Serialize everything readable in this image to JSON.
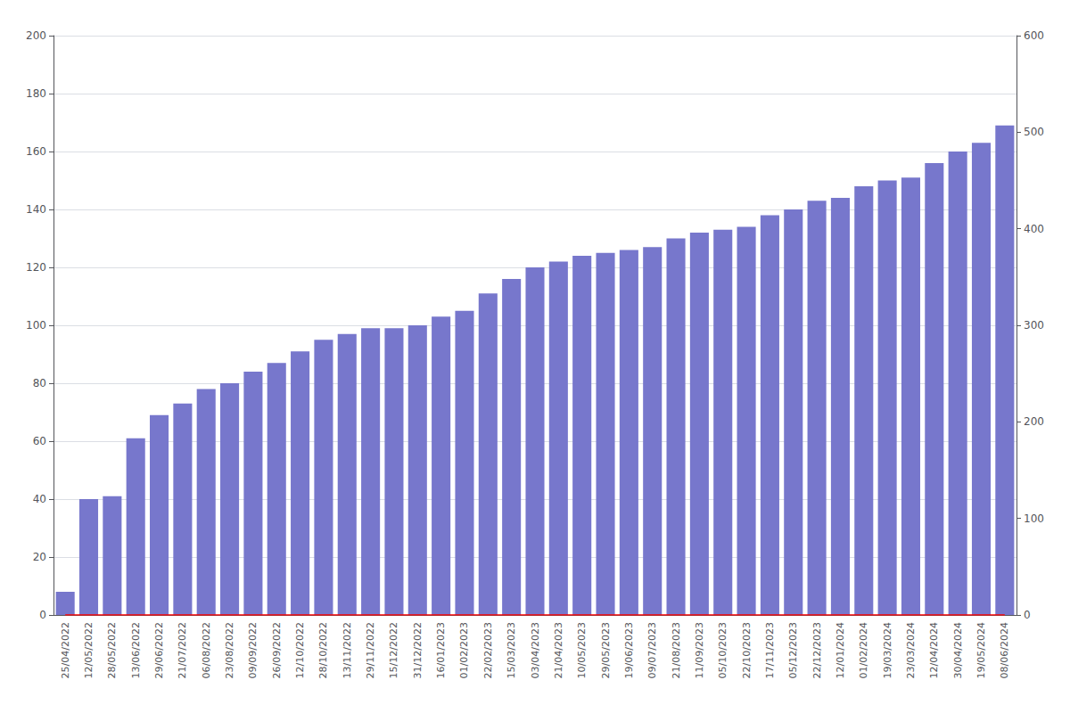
{
  "chart_data": {
    "type": "bar",
    "categories": [
      "25/04/2022",
      "12/05/2022",
      "28/05/2022",
      "13/06/2022",
      "29/06/2022",
      "21/07/2022",
      "06/08/2022",
      "23/08/2022",
      "09/09/2022",
      "26/09/2022",
      "12/10/2022",
      "28/10/2022",
      "13/11/2022",
      "29/11/2022",
      "15/12/2022",
      "31/12/2022",
      "16/01/2023",
      "01/02/2023",
      "22/02/2023",
      "15/03/2023",
      "03/04/2023",
      "21/04/2023",
      "10/05/2023",
      "29/05/2023",
      "19/06/2023",
      "09/07/2023",
      "21/08/2023",
      "11/09/2023",
      "05/10/2023",
      "22/10/2023",
      "17/11/2023",
      "05/12/2023",
      "22/12/2023",
      "12/01/2024",
      "01/02/2024",
      "19/03/2024",
      "23/03/2024",
      "12/04/2024",
      "30/04/2024",
      "19/05/2024",
      "08/06/2024"
    ],
    "series": [
      {
        "type": "bar",
        "color": "#7777cc",
        "values": [
          8,
          40,
          41,
          61,
          69,
          73,
          78,
          80,
          84,
          87,
          91,
          95,
          97,
          99,
          99,
          100,
          103,
          105,
          111,
          116,
          120,
          122,
          124,
          125,
          126,
          127,
          130,
          132,
          133,
          134,
          138,
          140,
          143,
          144,
          148,
          150,
          151,
          156,
          160,
          163,
          169
        ]
      },
      {
        "type": "line",
        "color": "#ff0000",
        "values": [
          0,
          0,
          0,
          0,
          0,
          0,
          0,
          0,
          0,
          0,
          0,
          0,
          0,
          0,
          0,
          0,
          0,
          0,
          0,
          0,
          0,
          0,
          0,
          0,
          0,
          0,
          0,
          0,
          0,
          0,
          0,
          0,
          0,
          0,
          0,
          0,
          0,
          0,
          0,
          0,
          0
        ]
      }
    ],
    "ylim": [
      0,
      200
    ],
    "yticks": [
      0,
      20,
      40,
      60,
      80,
      100,
      120,
      140,
      160,
      180,
      200
    ],
    "y2lim": [
      0,
      600
    ],
    "y2ticks": [
      0,
      100,
      200,
      300,
      400,
      500,
      600
    ],
    "grid": true
  }
}
